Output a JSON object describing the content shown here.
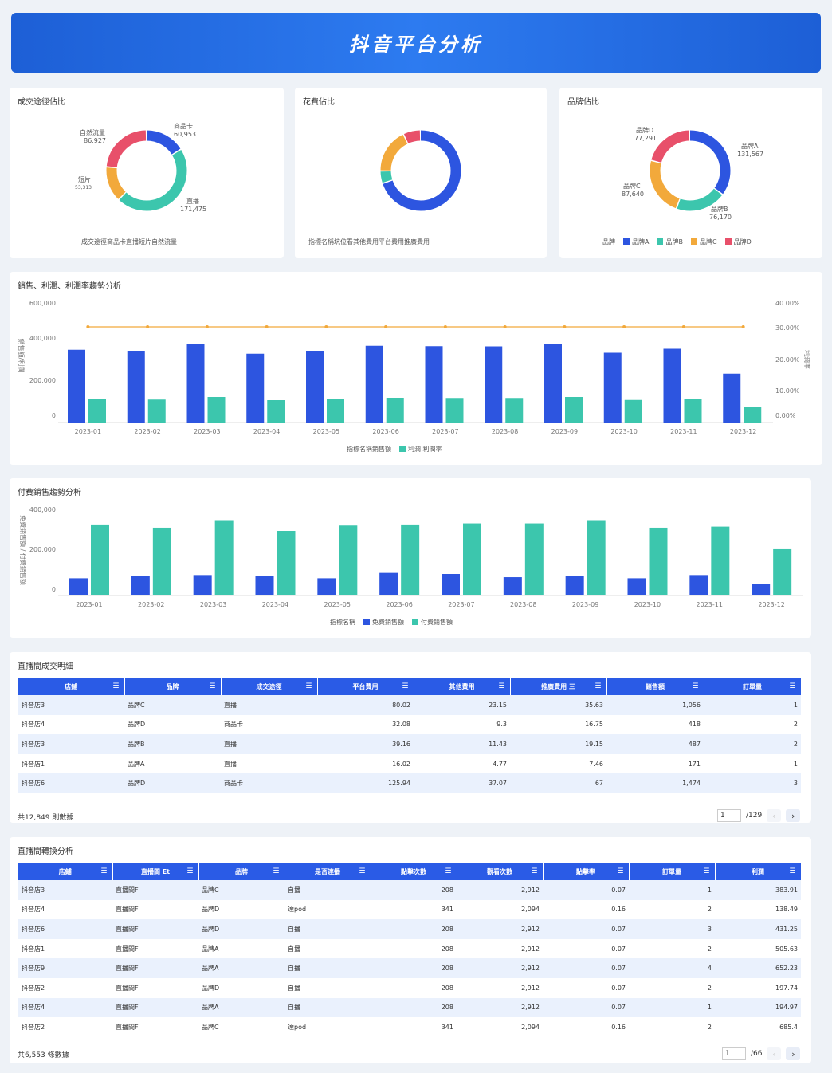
{
  "header": {
    "title": "抖音平台分析"
  },
  "donut1": {
    "title": "成交途徑佔比",
    "caption": "成交途徑商品卡直播短片自然流量",
    "labels": [
      {
        "name": "商品卡",
        "value": "60,953"
      },
      {
        "name": "直播",
        "value": "171,475"
      },
      {
        "name": "短片",
        "value": "53,313"
      },
      {
        "name": "自然流量",
        "value": "86,927"
      }
    ]
  },
  "donut2": {
    "title": "花費佔比",
    "caption": "指標名稱坑位看其他費用平台費用推廣費用"
  },
  "donut3": {
    "title": "品牌佔比",
    "labels": [
      {
        "name": "品牌A",
        "value": "131,567"
      },
      {
        "name": "品牌B",
        "value": "76,170"
      },
      {
        "name": "品牌C",
        "value": "87,640"
      },
      {
        "name": "品牌D",
        "value": "77,291"
      }
    ],
    "legend_title": "品牌",
    "legend": [
      "品牌A",
      "品牌B",
      "品牌C",
      "品牌D"
    ]
  },
  "chart1": {
    "title": "銷售、利潤、利潤率趨勢分析",
    "ylabel_left": "銷售額/利潤",
    "ylabel_right": "利潤率",
    "left_ticks": [
      "600,000",
      "400,000",
      "200,000",
      "0"
    ],
    "right_ticks": [
      "40.00%",
      "30.00%",
      "20.00%",
      "10.00%",
      "0.00%"
    ],
    "legend_a": "指標名稱銷售額",
    "legend_b": "利潤 利潤率"
  },
  "chart2": {
    "title": "付費銷售趨勢分析",
    "ylabel_left": "免費銷售額 / 付費銷售額",
    "left_ticks": [
      "400,000",
      "200,000",
      "0"
    ],
    "legend_title": "指標名稱",
    "legend_a": "免費銷售額",
    "legend_b": "付費銷售額"
  },
  "chart_data": [
    {
      "type": "pie",
      "title": "成交途徑佔比",
      "categories": [
        "商品卡",
        "直播",
        "短片",
        "自然流量"
      ],
      "values": [
        60953,
        171475,
        53313,
        86927
      ],
      "colors": [
        "#2d55e0",
        "#3cc6ad",
        "#f2a93b",
        "#e8506a"
      ]
    },
    {
      "type": "pie",
      "title": "花費佔比",
      "categories": [
        "坑位看",
        "其他費用",
        "平台費用",
        "推廣費用"
      ],
      "values": [
        70,
        5,
        18,
        7
      ],
      "colors": [
        "#2d55e0",
        "#3cc6ad",
        "#f2a93b",
        "#e8506a"
      ]
    },
    {
      "type": "pie",
      "title": "品牌佔比",
      "categories": [
        "品牌A",
        "品牌B",
        "品牌C",
        "品牌D"
      ],
      "values": [
        131567,
        76170,
        87640,
        77291
      ],
      "colors": [
        "#2d55e0",
        "#3cc6ad",
        "#f2a93b",
        "#e8506a"
      ]
    },
    {
      "type": "bar",
      "title": "銷售、利潤、利潤率趨勢分析",
      "categories": [
        "2023-01",
        "2023-02",
        "2023-03",
        "2023-04",
        "2023-05",
        "2023-06",
        "2023-07",
        "2023-08",
        "2023-09",
        "2023-10",
        "2023-11",
        "2023-12"
      ],
      "series": [
        {
          "name": "銷售額",
          "values": [
            365000,
            360000,
            395000,
            345000,
            360000,
            385000,
            383000,
            382000,
            392000,
            350000,
            370000,
            245000
          ],
          "color": "#2d55e0"
        },
        {
          "name": "利潤",
          "values": [
            118000,
            115000,
            128000,
            112000,
            116000,
            124000,
            123000,
            123000,
            128000,
            113000,
            120000,
            78000
          ],
          "color": "#3cc6ad"
        },
        {
          "name": "利潤率",
          "type": "line",
          "axis": "right",
          "values": [
            0.32,
            0.32,
            0.32,
            0.32,
            0.32,
            0.32,
            0.32,
            0.32,
            0.32,
            0.32,
            0.32,
            0.32
          ],
          "color": "#f2a93b"
        }
      ],
      "ylim": [
        0,
        600000
      ],
      "ylim_right": [
        0,
        0.4
      ]
    },
    {
      "type": "bar",
      "title": "付費銷售趨勢分析",
      "categories": [
        "2023-01",
        "2023-02",
        "2023-03",
        "2023-04",
        "2023-05",
        "2023-06",
        "2023-07",
        "2023-08",
        "2023-09",
        "2023-10",
        "2023-11",
        "2023-12"
      ],
      "series": [
        {
          "name": "免費銷售額",
          "values": [
            80000,
            90000,
            95000,
            90000,
            80000,
            105000,
            100000,
            85000,
            90000,
            80000,
            95000,
            55000
          ],
          "color": "#2d55e0"
        },
        {
          "name": "付費銷售額",
          "values": [
            330000,
            315000,
            350000,
            300000,
            325000,
            330000,
            335000,
            335000,
            350000,
            315000,
            320000,
            215000
          ],
          "color": "#3cc6ad"
        }
      ],
      "ylim": [
        0,
        400000
      ]
    }
  ],
  "table1": {
    "title": "直播間成交明細",
    "columns": [
      "店鋪",
      "品牌",
      "成交途徑",
      "平台費用",
      "其他費用",
      "推廣費用 三",
      "銷售額",
      "訂單量"
    ],
    "rows": [
      [
        "抖音店3",
        "品牌C",
        "直播",
        "80.02",
        "23.15",
        "35.63",
        "1,056",
        "1"
      ],
      [
        "抖音店4",
        "品牌D",
        "商品卡",
        "32.08",
        "9.3",
        "16.75",
        "418",
        "2"
      ],
      [
        "抖音店3",
        "品牌B",
        "直播",
        "39.16",
        "11.43",
        "19.15",
        "487",
        "2"
      ],
      [
        "抖音店1",
        "品牌A",
        "直播",
        "16.02",
        "4.77",
        "7.46",
        "171",
        "1"
      ],
      [
        "抖音店6",
        "品牌D",
        "商品卡",
        "125.94",
        "37.07",
        "67",
        "1,474",
        "3"
      ]
    ],
    "footer": "共12,849 則數據",
    "page": "1",
    "pages": "/129"
  },
  "table2": {
    "title": "直播間轉換分析",
    "columns": [
      "店鋪",
      "直播間 Et",
      "品牌",
      "是否連播",
      "點擊次數",
      "觀看次數",
      "點擊率",
      "訂單量",
      "利潤"
    ],
    "rows": [
      [
        "抖音店3",
        "直播間F",
        "品牌C",
        "自播",
        "208",
        "2,912",
        "0.07",
        "1",
        "383.91"
      ],
      [
        "抖音店4",
        "直播間F",
        "品牌D",
        "達pod",
        "341",
        "2,094",
        "0.16",
        "2",
        "138.49"
      ],
      [
        "抖音店6",
        "直播間F",
        "品牌D",
        "自播",
        "208",
        "2,912",
        "0.07",
        "3",
        "431.25"
      ],
      [
        "抖音店1",
        "直播間F",
        "品牌A",
        "自播",
        "208",
        "2,912",
        "0.07",
        "2",
        "505.63"
      ],
      [
        "抖音店9",
        "直播間F",
        "品牌A",
        "自播",
        "208",
        "2,912",
        "0.07",
        "4",
        "652.23"
      ],
      [
        "抖音店2",
        "直播間F",
        "品牌D",
        "自播",
        "208",
        "2,912",
        "0.07",
        "2",
        "197.74"
      ],
      [
        "抖音店4",
        "直播間F",
        "品牌A",
        "自播",
        "208",
        "2,912",
        "0.07",
        "1",
        "194.97"
      ],
      [
        "抖音店2",
        "直播間F",
        "品牌C",
        "達pod",
        "341",
        "2,094",
        "0.16",
        "2",
        "685.4"
      ]
    ],
    "footer": "共6,553 條數據",
    "page": "1",
    "pages": "/66"
  }
}
